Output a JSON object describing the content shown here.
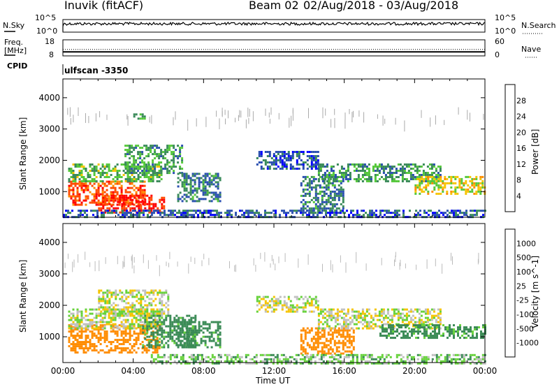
{
  "header": {
    "station": "Inuvik (fitACF)",
    "beam": "Beam 02",
    "date_range": "02/Aug/2018 - 03/Aug/2018"
  },
  "noise_panel": {
    "left_label": "N.Sky",
    "right_label": "N.Search",
    "left_ticks": [
      "10^5",
      "10^0"
    ],
    "right_ticks": [
      "10^5",
      "10^0"
    ]
  },
  "freq_panel": {
    "left_label_1": "Freq.",
    "left_label_2": "[MHz]",
    "right_label": "Nave",
    "left_ticks": [
      "18",
      "8"
    ],
    "right_ticks": [
      "60",
      "0"
    ],
    "freq_mhz": 10.5,
    "nave": 24
  },
  "cpid_panel": {
    "label": "CPID",
    "value": "ulfscan -3350"
  },
  "colors": {
    "power_scale": [
      "#0000ff",
      "#2a4fb0",
      "#3a8a5a",
      "#55c83a",
      "#f5c400",
      "#ff8c00",
      "#ff4a00",
      "#ff0000"
    ],
    "velocity_scale": [
      "#1a3fd0",
      "#2a6fb0",
      "#3a8a55",
      "#66d23a",
      "#c0c0c0",
      "#f5c400",
      "#ff8c00",
      "#ff4a00",
      "#ff0000"
    ]
  },
  "chart_data": {
    "type": "heatmap",
    "x": {
      "label": "Time UT",
      "ticks": [
        "00:00",
        "04:00",
        "08:00",
        "12:00",
        "16:00",
        "20:00",
        "00:00"
      ],
      "range_hours": [
        0,
        24
      ]
    },
    "panels": [
      {
        "name": "power",
        "ylabel": "Slant Range [km]",
        "yticks": [
          "1000",
          "2000",
          "3000",
          "4000"
        ],
        "ylim": [
          180,
          4600
        ],
        "colorbar_label": "Power [dB]",
        "colorbar_ticks": [
          "4",
          "8",
          "12",
          "16",
          "20",
          "24",
          "28"
        ],
        "value_range": [
          0,
          30
        ],
        "regions": [
          {
            "t": [
              0.3,
              4.7
            ],
            "r": [
              550,
              1350
            ],
            "v": 24
          },
          {
            "t": [
              0.3,
              5.6
            ],
            "r": [
              1300,
              1900
            ],
            "v": 12
          },
          {
            "t": [
              2.0,
              5.8
            ],
            "r": [
              300,
              900
            ],
            "v": 27
          },
          {
            "t": [
              3.5,
              6.8
            ],
            "r": [
              1600,
              2500
            ],
            "v": 10
          },
          {
            "t": [
              6.5,
              9.0
            ],
            "r": [
              700,
              1600
            ],
            "v": 8
          },
          {
            "t": [
              13.5,
              16.0
            ],
            "r": [
              300,
              1500
            ],
            "v": 8
          },
          {
            "t": [
              14.5,
              21.5
            ],
            "r": [
              1300,
              1900
            ],
            "v": 10
          },
          {
            "t": [
              20.0,
              24.0
            ],
            "r": [
              900,
              1500
            ],
            "v": 16
          },
          {
            "t": [
              0.0,
              24.0
            ],
            "r": [
              180,
              420
            ],
            "v": 6
          },
          {
            "t": [
              11.0,
              14.5
            ],
            "r": [
              1700,
              2300
            ],
            "v": 6
          },
          {
            "t": [
              4.0,
              4.6
            ],
            "r": [
              3300,
              3500
            ],
            "v": 12
          }
        ]
      },
      {
        "name": "velocity",
        "ylabel": "Slant Range [km]",
        "yticks": [
          "1000",
          "2000",
          "3000",
          "4000"
        ],
        "ylim": [
          180,
          4600
        ],
        "colorbar_label": "Velocity [m s^-1]",
        "colorbar_ticks": [
          "1000",
          "500",
          "100",
          "25",
          "-25",
          "-100",
          "-500",
          "-1000"
        ],
        "value_range": [
          -1200,
          1200
        ],
        "regions": [
          {
            "t": [
              0.3,
              5.5
            ],
            "r": [
              500,
              1400
            ],
            "v": -180
          },
          {
            "t": [
              0.3,
              5.6
            ],
            "r": [
              1300,
              1900
            ],
            "v": 0
          },
          {
            "t": [
              2.0,
              6.0
            ],
            "r": [
              1700,
              2500
            ],
            "v": 0
          },
          {
            "t": [
              4.5,
              7.5
            ],
            "r": [
              700,
              1700
            ],
            "v": 150
          },
          {
            "t": [
              6.5,
              9.0
            ],
            "r": [
              700,
              1500
            ],
            "v": 160
          },
          {
            "t": [
              13.5,
              16.5
            ],
            "r": [
              500,
              1300
            ],
            "v": -200
          },
          {
            "t": [
              14.5,
              21.5
            ],
            "r": [
              1300,
              1900
            ],
            "v": 0
          },
          {
            "t": [
              18.0,
              24.0
            ],
            "r": [
              1000,
              1400
            ],
            "v": 150
          },
          {
            "t": [
              5.0,
              24.0
            ],
            "r": [
              180,
              450
            ],
            "v": 60
          },
          {
            "t": [
              11.0,
              14.5
            ],
            "r": [
              1800,
              2300
            ],
            "v": 0
          }
        ]
      }
    ]
  }
}
